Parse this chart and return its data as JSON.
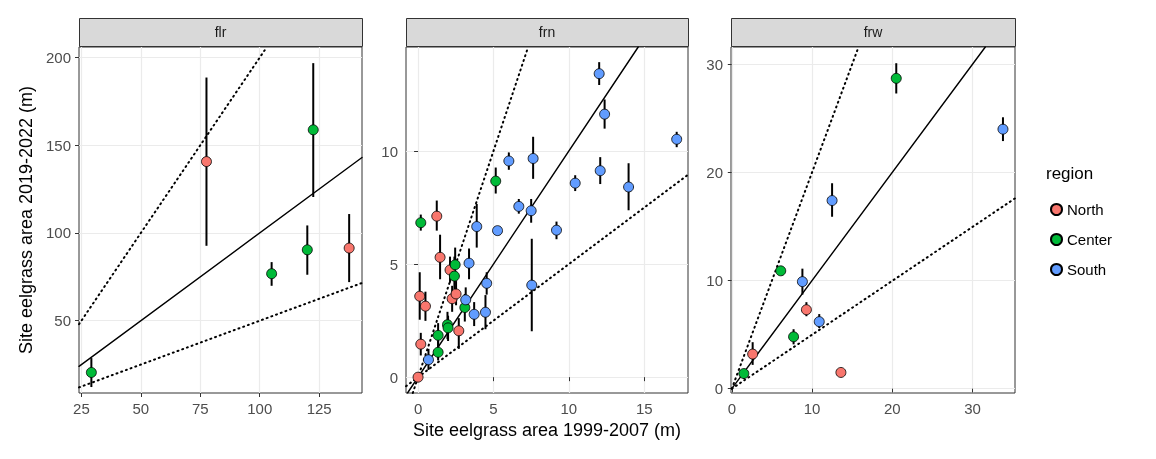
{
  "chart_data": [
    {
      "type": "scatter",
      "title": "flr",
      "ylabel": "Site eelgrass area 2019-2022 (m)",
      "xlim": [
        24,
        143
      ],
      "ylim": [
        8.8,
        206
      ],
      "xticks": [
        25,
        50,
        75,
        100,
        125
      ],
      "yticks": [
        50,
        100,
        150,
        200
      ],
      "grid": true,
      "legend": false,
      "marker": "circle",
      "series": [
        {
          "color": "#f8766d",
          "x": [
            77.6,
            137.6
          ],
          "values": [
            140.7,
            91.4
          ],
          "errors": [
            [
              92.7,
              188.6
            ],
            [
              72.0,
              110.8
            ]
          ]
        },
        {
          "color": "#00ba38",
          "x": [
            29.2,
            122.5,
            105,
            120
          ],
          "values": [
            20.5,
            158.8,
            76.8,
            90.4
          ],
          "errors": [
            [
              12.2,
              28.7
            ],
            [
              120.5,
              196.8
            ],
            [
              69.9,
              83.4
            ],
            [
              76.2,
              104.3
            ]
          ]
        },
        {
          "type": "line",
          "marker": "none",
          "color": "#000000",
          "line_style": "solid",
          "x": [
            24,
            143
          ],
          "values": [
            24,
            143
          ]
        },
        {
          "type": "line",
          "marker": "none",
          "color": "#000000",
          "line_style": "dotted",
          "x": [
            24,
            103
          ],
          "values": [
            48,
            206
          ]
        },
        {
          "type": "line",
          "marker": "none",
          "color": "#000000",
          "line_style": "dotted",
          "x": [
            24,
            143
          ],
          "values": [
            12,
            71.5
          ]
        }
      ]
    },
    {
      "type": "scatter",
      "title": "frn",
      "xlabel": "Site eelgrass area 1999-2007 (m)",
      "xlim": [
        -0.8,
        17.9
      ],
      "ylim": [
        -0.7,
        14.6
      ],
      "xticks": [
        0,
        5,
        10,
        15
      ],
      "yticks": [
        0,
        5,
        10
      ],
      "grid": true,
      "legend": false,
      "marker": "circle",
      "series": [
        {
          "color": "#f8766d",
          "x": [
            0,
            0.18,
            0.11,
            0.49,
            1.24,
            1.46,
            2.12,
            2.26,
            2.52,
            2.7
          ],
          "values": [
            0,
            1.46,
            3.58,
            3.14,
            7.12,
            5.3,
            4.74,
            3.47,
            3.68,
            2.05
          ],
          "errors": [
            null,
            [
              0.96,
              1.96
            ],
            [
              2.54,
              4.64
            ],
            [
              2.49,
              3.78
            ],
            [
              6.48,
              7.81
            ],
            [
              4.33,
              6.3
            ],
            [
              4.18,
              5.33
            ],
            [
              2.89,
              4.04
            ],
            [
              3.18,
              4.25
            ],
            [
              1.25,
              2.61
            ]
          ]
        },
        {
          "color": "#00ba38",
          "x": [
            0.18,
            1.33,
            1.33,
            1.95,
            1.99,
            2.46,
            2.41,
            3.1,
            5.15
          ],
          "values": [
            6.83,
            1.85,
            1.1,
            2.32,
            2.18,
            4.97,
            4.47,
            3.08,
            8.67
          ],
          "errors": [
            [
              6.48,
              7.19
            ],
            [
              1.32,
              2.39
            ],
            [
              0.74,
              1.6
            ],
            [
              1.68,
              2.89
            ],
            [
              1.6,
              2.72
            ],
            [
              4.33,
              5.73
            ],
            [
              3.9,
              5.33
            ],
            [
              2.46,
              3.68
            ],
            [
              8.12,
              9.27
            ]
          ]
        },
        {
          "color": "#619cff",
          "x": [
            0.69,
            3.16,
            3.38,
            3.72,
            4.47,
            4.55,
            3.89,
            5.27,
            6.02,
            6.68,
            7.5,
            7.63,
            7.54,
            9.18,
            10.42,
            12.01,
            12.37,
            12.08,
            13.96,
            17.15
          ],
          "values": [
            0.77,
            3.42,
            5.04,
            2.78,
            2.87,
            4.15,
            6.66,
            6.48,
            9.56,
            7.55,
            7.36,
            9.67,
            4.07,
            6.5,
            8.58,
            13.42,
            11.63,
            9.13,
            8.41,
            10.52
          ],
          "errors": [
            [
              0.32,
              1.25
            ],
            [
              2.89,
              3.97
            ],
            [
              4.33,
              5.69
            ],
            [
              2.26,
              3.32
            ],
            [
              2.12,
              3.63
            ],
            [
              3.65,
              4.64
            ],
            [
              5.73,
              7.66
            ],
            null,
            [
              9.17,
              9.94
            ],
            [
              7.23,
              7.88
            ],
            [
              6.83,
              7.88
            ],
            [
              8.77,
              10.63
            ],
            [
              2.03,
              6.12
            ],
            [
              6.1,
              6.88
            ],
            [
              8.23,
              8.93
            ],
            [
              12.92,
              13.93
            ],
            [
              10.99,
              12.28
            ],
            [
              8.54,
              9.73
            ],
            [
              7.38,
              9.46
            ],
            [
              10.17,
              10.85
            ]
          ]
        },
        {
          "type": "line",
          "marker": "none",
          "color": "#000000",
          "line_style": "solid",
          "x": [
            -0.7,
            14.6
          ],
          "values": [
            -0.7,
            14.6
          ]
        },
        {
          "type": "line",
          "marker": "none",
          "color": "#000000",
          "line_style": "dotted",
          "x": [
            -0.35,
            7.3
          ],
          "values": [
            -0.7,
            14.6
          ]
        },
        {
          "type": "line",
          "marker": "none",
          "color": "#000000",
          "line_style": "dotted",
          "x": [
            -0.8,
            17.9
          ],
          "values": [
            -0.4,
            8.95
          ]
        }
      ]
    },
    {
      "type": "scatter",
      "title": "frw",
      "xlim": [
        -0.1,
        35.3
      ],
      "ylim": [
        -0.4,
        31.6
      ],
      "xticks": [
        0,
        10,
        20,
        30
      ],
      "yticks": [
        0,
        10,
        20,
        30
      ],
      "grid": true,
      "legend": "right",
      "legend_title": "region",
      "marker": "circle",
      "series": [
        {
          "name": "North",
          "color": "#f8766d",
          "x": [
            2.6,
            9.3,
            13.6
          ],
          "values": [
            3.2,
            7.3,
            1.5
          ],
          "errors": [
            [
              2.2,
              4.3
            ],
            [
              6.7,
              8
            ],
            null
          ]
        },
        {
          "name": "Center",
          "color": "#00ba38",
          "x": [
            1.5,
            6.1,
            7.7,
            20.5
          ],
          "values": [
            1.4,
            10.9,
            4.8,
            28.7
          ],
          "errors": [
            [
              0.9,
              1.8
            ],
            null,
            [
              4.1,
              5.5
            ],
            [
              27.3,
              30.1
            ]
          ]
        },
        {
          "name": "South",
          "color": "#619cff",
          "x": [
            8.8,
            10.9,
            12.5,
            33.8
          ],
          "values": [
            9.9,
            6.2,
            17.4,
            24
          ],
          "errors": [
            [
              8.7,
              11.1
            ],
            [
              5.6,
              6.9
            ],
            [
              15.9,
              19
            ],
            [
              22.9,
              25.1
            ]
          ]
        },
        {
          "type": "line",
          "marker": "none",
          "color": "#000000",
          "line_style": "solid",
          "x": [
            0,
            31.6
          ],
          "values": [
            0,
            31.6
          ]
        },
        {
          "type": "line",
          "marker": "none",
          "color": "#000000",
          "line_style": "dotted",
          "x": [
            0,
            15.8
          ],
          "values": [
            0,
            31.6
          ]
        },
        {
          "type": "line",
          "marker": "none",
          "color": "#000000",
          "line_style": "dotted",
          "x": [
            0,
            35.3
          ],
          "values": [
            0,
            17.6
          ]
        }
      ]
    }
  ]
}
